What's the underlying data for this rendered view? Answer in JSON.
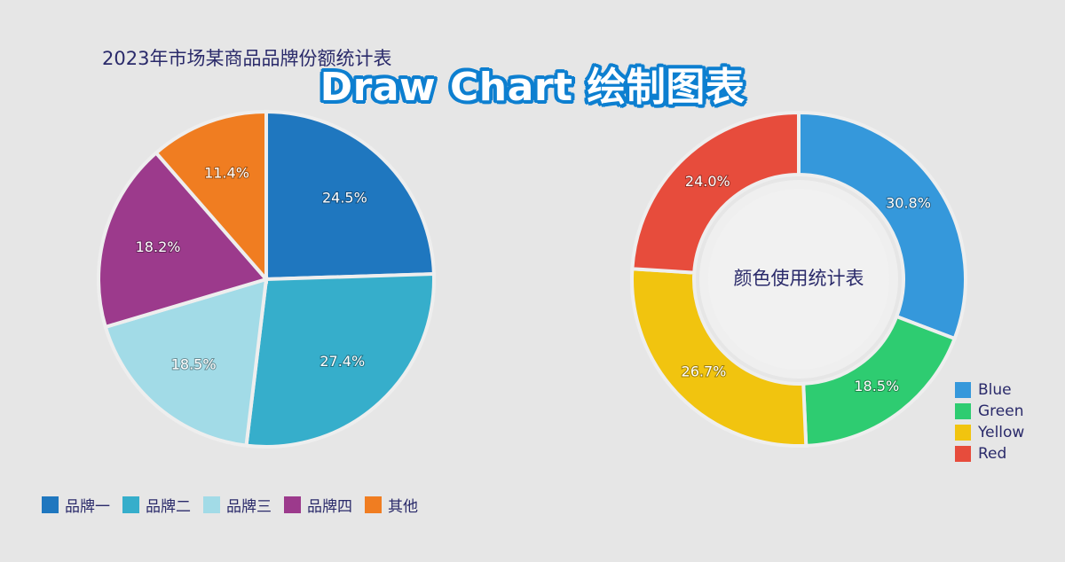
{
  "banner": {
    "text": "Draw Chart 绘制图表"
  },
  "chart_data": [
    {
      "type": "pie",
      "title": "2023年市场某商品品牌份额统计表",
      "categories": [
        "品牌一",
        "品牌二",
        "品牌三",
        "品牌四",
        "其他"
      ],
      "values": [
        24.5,
        27.4,
        18.5,
        18.2,
        11.4
      ],
      "labels": [
        "24.5%",
        "27.4%",
        "18.5%",
        "18.2%",
        "11.4%"
      ],
      "colors": [
        "#1f77bf",
        "#36aecb",
        "#a2dbe7",
        "#9c3a8c",
        "#f07d21"
      ],
      "legend_position": "bottom"
    },
    {
      "type": "pie",
      "subtype": "donut",
      "center_text": "颜色使用统计表",
      "categories": [
        "Blue",
        "Green",
        "Yellow",
        "Red"
      ],
      "values": [
        30.8,
        18.5,
        26.7,
        24.0
      ],
      "labels": [
        "30.8%",
        "18.5%",
        "26.7%",
        "24.0%"
      ],
      "colors": [
        "#3598db",
        "#2ecc71",
        "#f1c40f",
        "#e74c3c"
      ],
      "legend_position": "bottom-right"
    }
  ]
}
